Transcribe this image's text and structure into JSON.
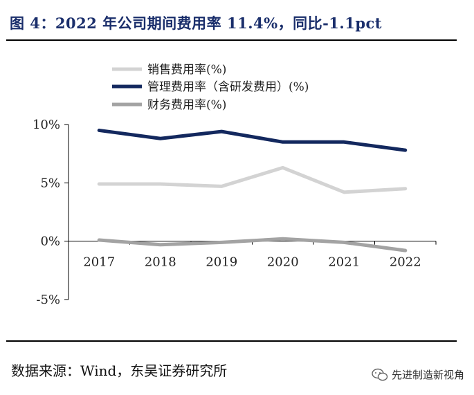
{
  "header": {
    "title": "图 4：2022 年公司期间费用率 11.4%，同比-1.1pct"
  },
  "footer": {
    "source": "数据来源：Wind，东吴证券研究所",
    "watermark": "先进制造新视角",
    "watermark_icon": "wechat-icon"
  },
  "chart_data": {
    "type": "line",
    "title": "",
    "xlabel": "",
    "ylabel": "",
    "categories": [
      "2017",
      "2018",
      "2019",
      "2020",
      "2021",
      "2022"
    ],
    "ylim": [
      -5,
      10
    ],
    "yticks": [
      10,
      5,
      0,
      -5
    ],
    "ytick_labels": [
      "10%",
      "5%",
      "0%",
      "-5%"
    ],
    "grid": false,
    "legend_position": "top-left",
    "series": [
      {
        "name": "销售费用率(%)",
        "color": "#d3d3d3",
        "values": [
          4.9,
          4.9,
          4.7,
          6.3,
          4.2,
          4.5
        ]
      },
      {
        "name": "管理费用率（含研发费用）(%)",
        "color": "#13285e",
        "values": [
          9.5,
          8.8,
          9.4,
          8.5,
          8.5,
          7.8
        ]
      },
      {
        "name": "财务费用率(%)",
        "color": "#a3a3a3",
        "values": [
          0.1,
          -0.3,
          -0.1,
          0.2,
          -0.1,
          -0.8
        ]
      }
    ]
  }
}
